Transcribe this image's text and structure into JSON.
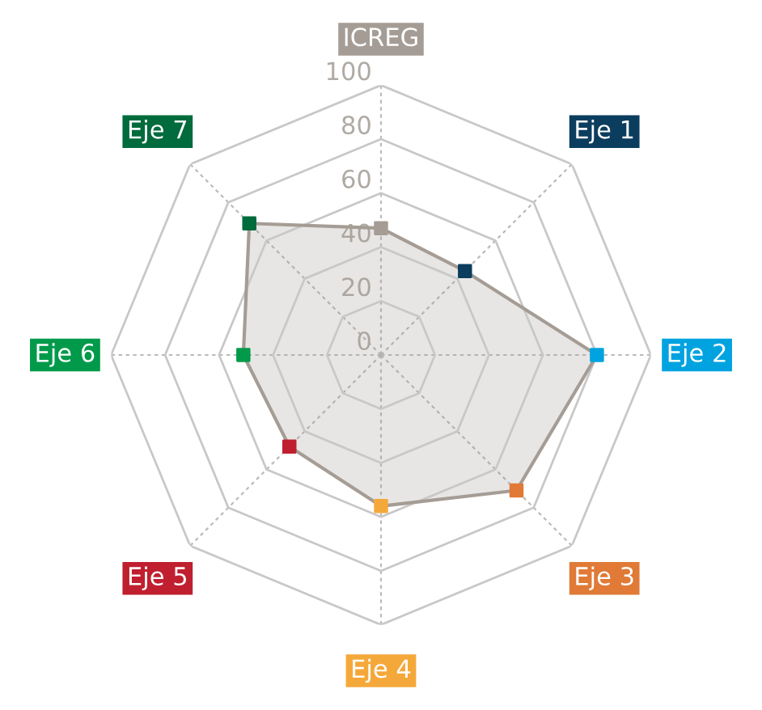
{
  "chart_data": {
    "type": "radar",
    "categories": [
      "ICREG",
      "Eje 1",
      "Eje 2",
      "Eje 3",
      "Eje 4",
      "Eje 5",
      "Eje 6",
      "Eje 7"
    ],
    "series": [
      {
        "color": "#a59d95",
        "colors": [
          "#a59d95",
          "#0b3d5e",
          "#00a3e0",
          "#e07a36",
          "#f5a83a",
          "#c01f2f",
          "#009a4a",
          "#006b3c"
        ],
        "values": [
          47,
          44,
          80,
          71,
          56,
          48,
          51,
          69
        ]
      }
    ],
    "ylim": [
      0,
      100
    ],
    "yticks": [
      0,
      20,
      40,
      60,
      80,
      100
    ],
    "grid": true,
    "marker": "square"
  }
}
